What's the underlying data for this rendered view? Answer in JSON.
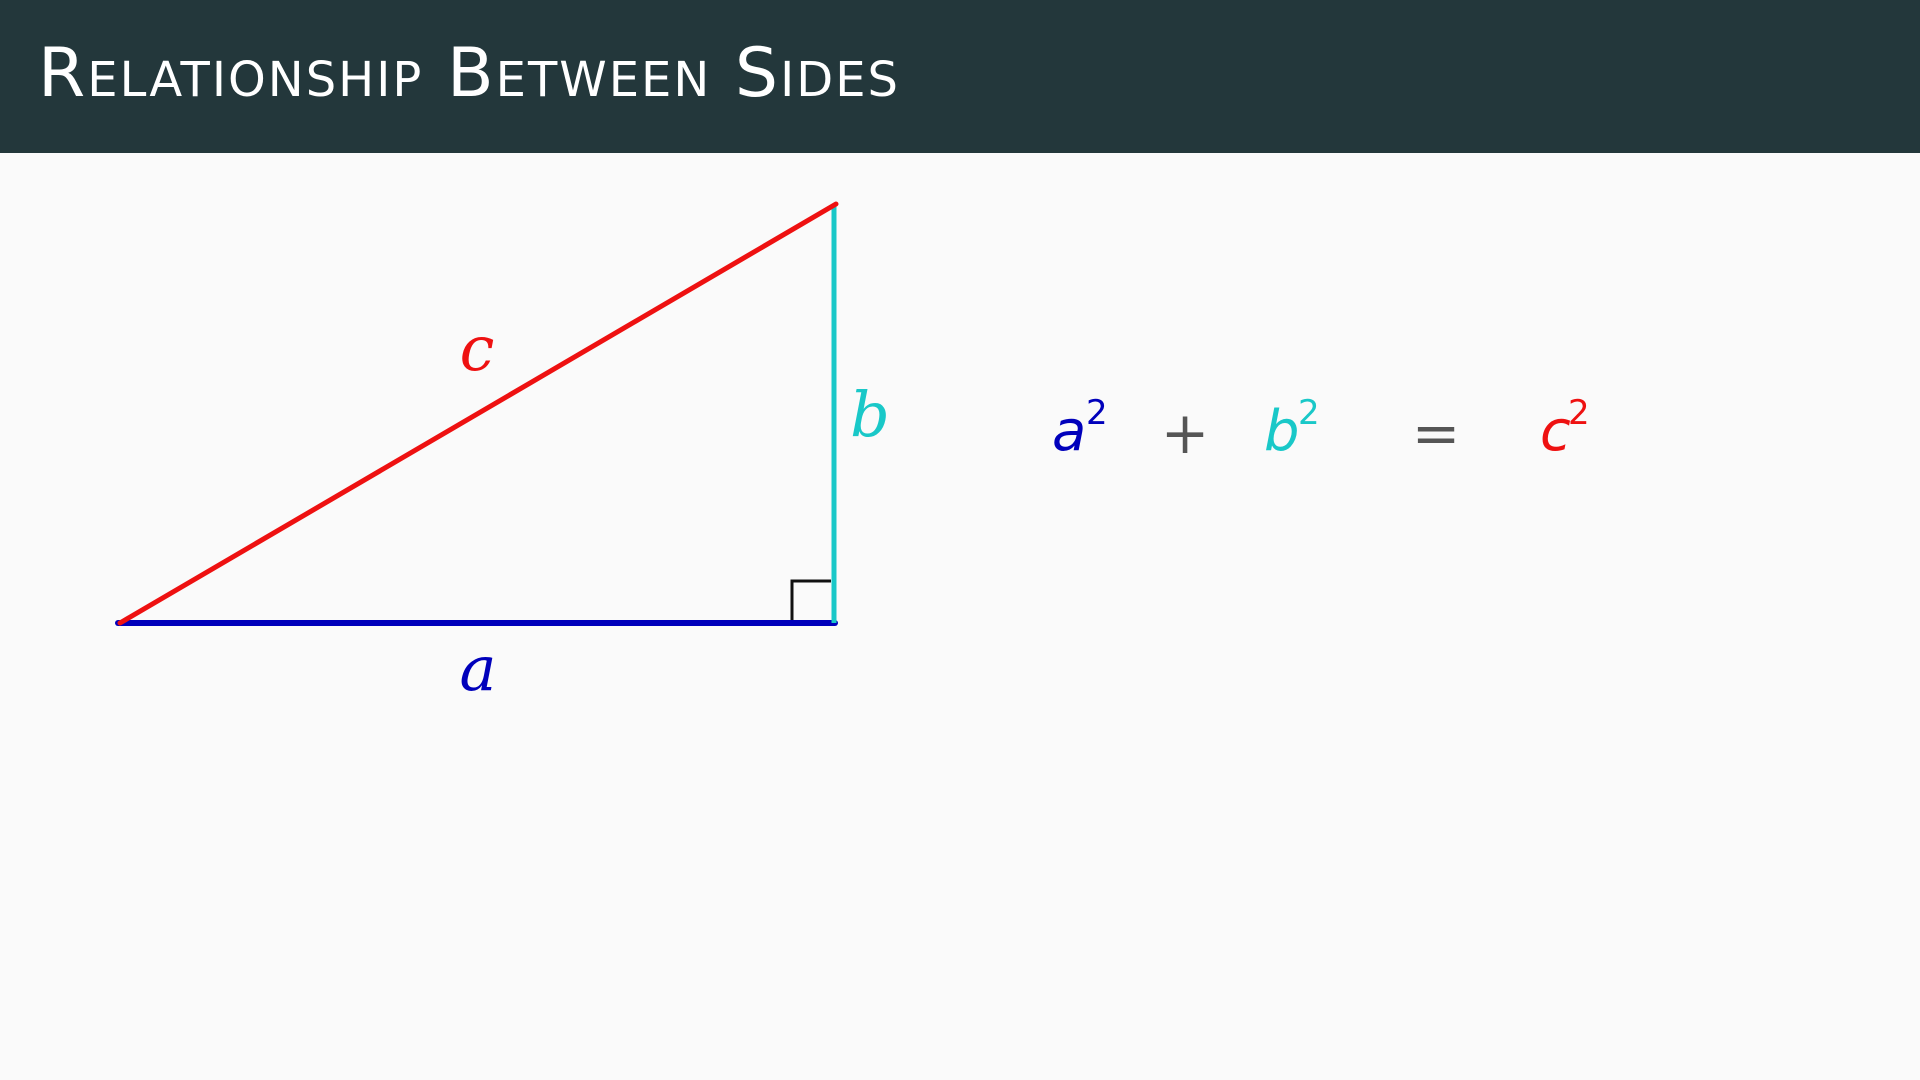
{
  "header": {
    "title": "Relationship Between Sides"
  },
  "triangle": {
    "labels": {
      "a": "a",
      "b": "b",
      "c": "c"
    },
    "colors": {
      "a": "#0000bb",
      "b": "#19c8c8",
      "c": "#ee1111",
      "right_angle": "#111111"
    }
  },
  "equation": {
    "term1": {
      "base": "a",
      "exponent": "2"
    },
    "plus": "+",
    "term2": {
      "base": "b",
      "exponent": "2"
    },
    "equals": "=",
    "term3": {
      "base": "c",
      "exponent": "2"
    }
  },
  "colors": {
    "header_bg": "#23373b",
    "background": "#fafafa",
    "title_text": "#ffffff",
    "operator": "#555555"
  }
}
